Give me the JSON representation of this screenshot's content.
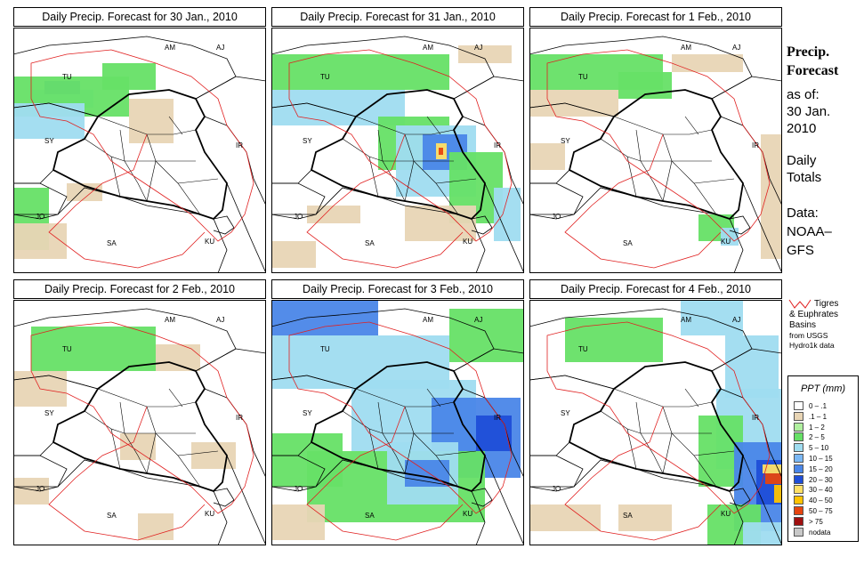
{
  "panels": [
    {
      "title": "Daily Precip. Forecast for  30 Jan., 2010",
      "cells": [
        [
          20,
          70,
          70,
          20,
          "#9fdcf0"
        ],
        [
          35,
          60,
          40,
          15,
          "#4a86e8"
        ],
        [
          0,
          55,
          130,
          45,
          "#66e066"
        ],
        [
          0,
          85,
          80,
          40,
          "#9fdcf0"
        ],
        [
          100,
          40,
          60,
          30,
          "#66e066"
        ],
        [
          130,
          80,
          50,
          50,
          "#e8d5b5"
        ],
        [
          0,
          180,
          40,
          70,
          "#66e066"
        ],
        [
          60,
          175,
          40,
          20,
          "#e8d5b5"
        ],
        [
          0,
          220,
          60,
          40,
          "#e8d5b5"
        ]
      ]
    },
    {
      "title": "Daily Precip. Forecast for  31 Jan., 2010",
      "cells": [
        [
          0,
          30,
          200,
          40,
          "#66e066"
        ],
        [
          0,
          70,
          150,
          40,
          "#9fdcf0"
        ],
        [
          120,
          100,
          80,
          60,
          "#66e066"
        ],
        [
          140,
          110,
          90,
          80,
          "#9fdcf0"
        ],
        [
          170,
          120,
          50,
          40,
          "#4a86e8"
        ],
        [
          185,
          130,
          12,
          18,
          "#ffe066"
        ],
        [
          188,
          135,
          5,
          8,
          "#e64510"
        ],
        [
          200,
          140,
          60,
          80,
          "#66e066"
        ],
        [
          250,
          180,
          30,
          60,
          "#9fdcf0"
        ],
        [
          150,
          200,
          80,
          40,
          "#e8d5b5"
        ],
        [
          40,
          200,
          60,
          20,
          "#e8d5b5"
        ],
        [
          0,
          240,
          50,
          30,
          "#e8d5b5"
        ],
        [
          210,
          20,
          60,
          20,
          "#e8d5b5"
        ]
      ]
    },
    {
      "title": "Daily Precip. Forecast for  1 Feb., 2010",
      "cells": [
        [
          0,
          30,
          150,
          40,
          "#66e066"
        ],
        [
          0,
          70,
          100,
          30,
          "#e8d5b5"
        ],
        [
          100,
          50,
          60,
          30,
          "#66e066"
        ],
        [
          190,
          210,
          40,
          30,
          "#66e066"
        ],
        [
          215,
          225,
          20,
          20,
          "#9fdcf0"
        ],
        [
          260,
          120,
          24,
          140,
          "#e8d5b5"
        ],
        [
          0,
          130,
          40,
          30,
          "#e8d5b5"
        ],
        [
          160,
          30,
          80,
          20,
          "#e8d5b5"
        ]
      ]
    },
    {
      "title": "Daily Precip. Forecast for  2 Feb., 2010",
      "cells": [
        [
          20,
          30,
          140,
          50,
          "#66e066"
        ],
        [
          160,
          50,
          50,
          30,
          "#e8d5b5"
        ],
        [
          0,
          80,
          60,
          40,
          "#e8d5b5"
        ],
        [
          120,
          150,
          40,
          30,
          "#e8d5b5"
        ],
        [
          0,
          200,
          40,
          30,
          "#e8d5b5"
        ],
        [
          200,
          160,
          50,
          30,
          "#e8d5b5"
        ],
        [
          140,
          240,
          40,
          30,
          "#e8d5b5"
        ]
      ]
    },
    {
      "title": "Daily Precip. Forecast for  3 Feb., 2010",
      "cells": [
        [
          0,
          0,
          120,
          40,
          "#4a86e8"
        ],
        [
          0,
          40,
          200,
          60,
          "#9fdcf0"
        ],
        [
          200,
          10,
          84,
          60,
          "#66e066"
        ],
        [
          90,
          90,
          140,
          80,
          "#9fdcf0"
        ],
        [
          180,
          110,
          100,
          90,
          "#4a86e8"
        ],
        [
          230,
          130,
          40,
          40,
          "#1f4ed8"
        ],
        [
          0,
          150,
          80,
          60,
          "#66e066"
        ],
        [
          40,
          170,
          200,
          80,
          "#66e066"
        ],
        [
          130,
          160,
          80,
          70,
          "#9fdcf0"
        ],
        [
          150,
          180,
          50,
          30,
          "#4a86e8"
        ],
        [
          0,
          230,
          60,
          40,
          "#e8d5b5"
        ]
      ]
    },
    {
      "title": "Daily Precip. Forecast for  4 Feb., 2010",
      "cells": [
        [
          40,
          20,
          110,
          50,
          "#66e066"
        ],
        [
          170,
          0,
          70,
          40,
          "#9fdcf0"
        ],
        [
          220,
          40,
          60,
          70,
          "#9fdcf0"
        ],
        [
          210,
          100,
          74,
          90,
          "#9fdcf0"
        ],
        [
          190,
          130,
          50,
          80,
          "#66e066"
        ],
        [
          230,
          160,
          54,
          100,
          "#4a86e8"
        ],
        [
          255,
          180,
          29,
          50,
          "#1f4ed8"
        ],
        [
          262,
          185,
          22,
          10,
          "#ffe066"
        ],
        [
          265,
          195,
          19,
          12,
          "#e64510"
        ],
        [
          275,
          208,
          9,
          20,
          "#ffc300"
        ],
        [
          200,
          230,
          60,
          46,
          "#66e066"
        ],
        [
          240,
          250,
          44,
          26,
          "#9fdcf0"
        ],
        [
          0,
          230,
          80,
          30,
          "#e8d5b5"
        ],
        [
          100,
          230,
          60,
          30,
          "#e8d5b5"
        ]
      ]
    }
  ],
  "map_labels": [
    "AM",
    "AJ",
    "TU",
    "SY",
    "IR",
    "JO",
    "SA",
    "KU"
  ],
  "side": {
    "title_line1": "Precip.",
    "title_line2": "Forecast",
    "asof": "as of:",
    "date1": "30 Jan.",
    "date2": "2010",
    "daily1": "Daily",
    "daily2": "Totals",
    "data1": "Data:",
    "data2": "NOAA–",
    "data3": "GFS"
  },
  "basins": {
    "line1": "Tigres",
    "line2": "& Euphrates",
    "line3": "Basins",
    "line4": "from USGS",
    "line5": "Hydro1k data"
  },
  "legend": {
    "title": "PPT (mm)",
    "items": [
      {
        "label": "0 – .1",
        "color": "#ffffff"
      },
      {
        "label": ".1 – 1",
        "color": "#e8d5b5"
      },
      {
        "label": "1 – 2",
        "color": "#b0f0a0"
      },
      {
        "label": "2 – 5",
        "color": "#66e066"
      },
      {
        "label": "5 – 10",
        "color": "#9fdcf0"
      },
      {
        "label": "10 – 15",
        "color": "#7ab8f5"
      },
      {
        "label": "15 – 20",
        "color": "#4a86e8"
      },
      {
        "label": "20 – 30",
        "color": "#1f4ed8"
      },
      {
        "label": "30 – 40",
        "color": "#ffe066"
      },
      {
        "label": "40 – 50",
        "color": "#ffc300"
      },
      {
        "label": "50 – 75",
        "color": "#e64510"
      },
      {
        "label": "> 75",
        "color": "#a01010"
      },
      {
        "label": "nodata",
        "color": "#c8c8c8"
      }
    ]
  },
  "colors": {
    "border_line": "#000000",
    "basin_line": "#e02020"
  }
}
